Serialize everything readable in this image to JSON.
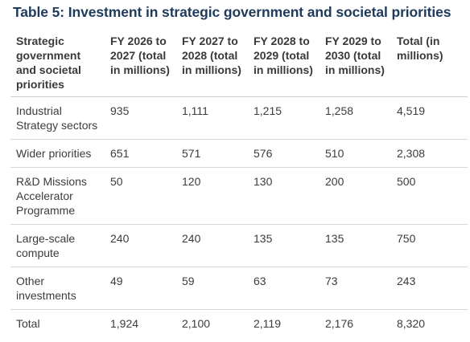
{
  "title": "Table 5: Investment in strategic government and societal priorities",
  "table": {
    "headers": [
      "Strategic government and societal priorities",
      "FY 2026 to 2027 (total in millions)",
      "FY 2027 to 2028 (total in millions)",
      "FY 2028 to 2029 (total in millions)",
      "FY 2029 to 2030 (total in millions)",
      "Total (in millions)"
    ],
    "rows": [
      [
        "Industrial Strategy sectors",
        "935",
        "1,111",
        "1,215",
        "1,258",
        "4,519"
      ],
      [
        "Wider priorities",
        "651",
        "571",
        "576",
        "510",
        "2,308"
      ],
      [
        "R&D Missions Accelerator Programme",
        "50",
        "120",
        "130",
        "200",
        "500"
      ],
      [
        "Large-scale compute",
        "240",
        "240",
        "135",
        "135",
        "750"
      ],
      [
        "Other investments",
        "49",
        "59",
        "63",
        "73",
        "243"
      ],
      [
        "Total",
        "1,924",
        "2,100",
        "2,119",
        "2,176",
        "8,320"
      ]
    ]
  }
}
